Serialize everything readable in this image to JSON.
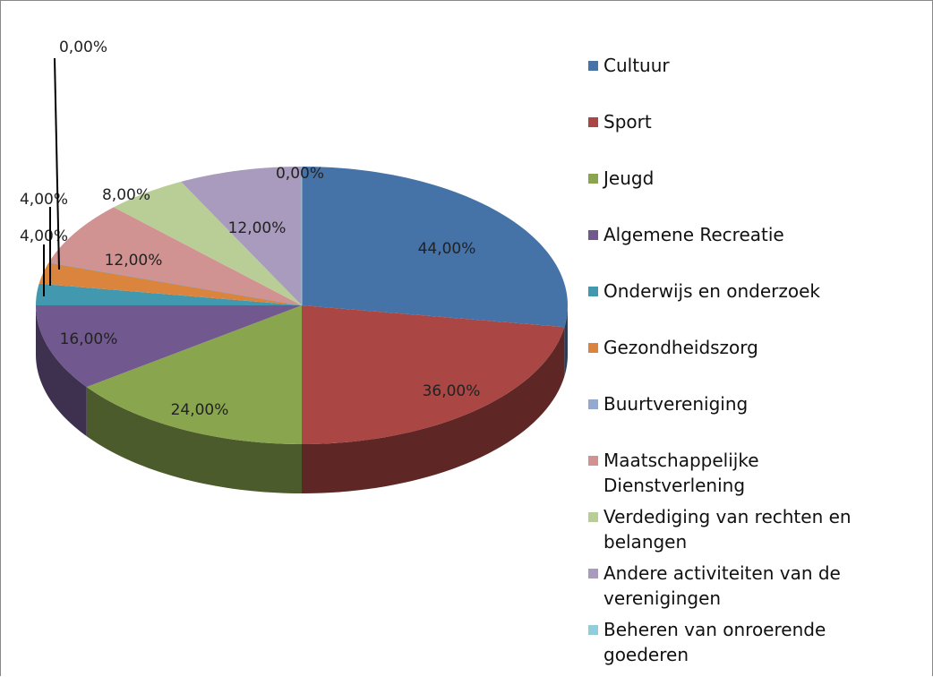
{
  "chart_data": {
    "type": "pie",
    "categories": [
      "Cultuur",
      "Sport",
      "Jeugd",
      "Algemene Recreatie",
      "Onderwijs en onderzoek",
      "Gezondheidszorg",
      "Buurtvereniging",
      "Maatschappelijke Dienstverlening",
      "Verdediging van rechten en belangen",
      "Andere activiteiten van de verenigingen",
      "Beheren van onroerende goederen"
    ],
    "values": [
      44,
      36,
      24,
      16,
      4,
      4,
      0,
      12,
      8,
      12,
      0
    ],
    "value_labels": [
      "44,00%",
      "36,00%",
      "24,00%",
      "16,00%",
      "4,00%",
      "4,00%",
      "0,00%",
      "12,00%",
      "8,00%",
      "12,00%",
      "0,00%"
    ],
    "colors": [
      "#4572a7",
      "#aa4643",
      "#89a54e",
      "#71588f",
      "#4198af",
      "#db843d",
      "#93a9cf",
      "#d19392",
      "#b9cd96",
      "#a99bbd",
      "#92cddc"
    ],
    "legend": "right"
  }
}
